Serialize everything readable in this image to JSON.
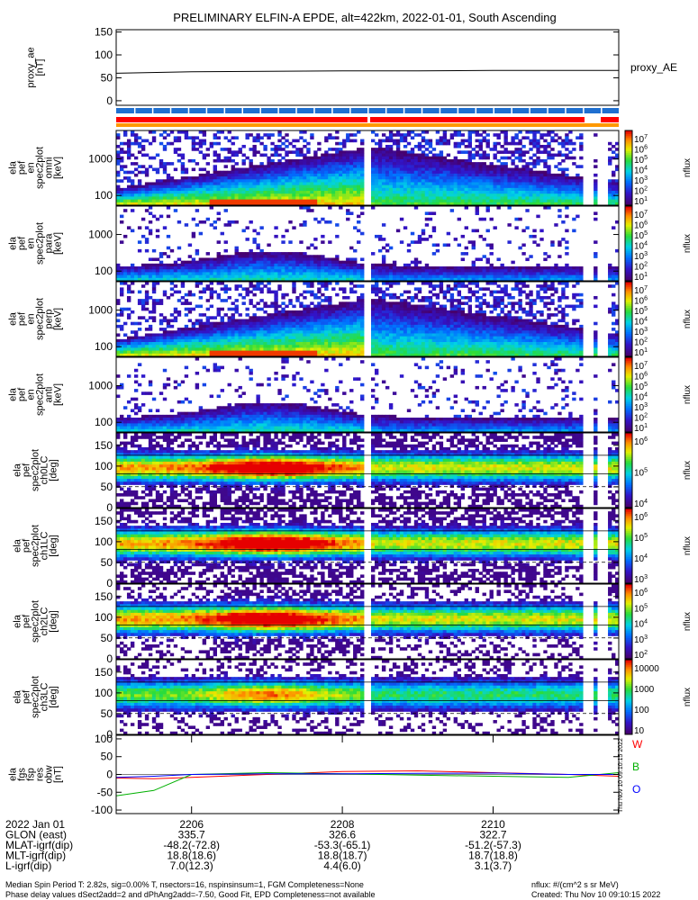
{
  "title": "PRELIMINARY ELFIN-A EPDE, alt=422km, 2022-01-01, South Ascending",
  "chart_data": [
    {
      "type": "line",
      "id": "proxy_ae",
      "ylabel": [
        "proxy_ae",
        "[nT]"
      ],
      "legend": "proxy_AE",
      "ylim": [
        -10,
        155
      ],
      "yticks": [
        "150",
        "100",
        "50",
        "0"
      ],
      "xlim": [
        "22:05:00",
        "22:11:40"
      ],
      "x": [
        "22:05:00",
        "22:06:00",
        "22:07:00",
        "22:08:00",
        "22:09:00",
        "22:10:00",
        "22:11:40"
      ],
      "values": [
        60,
        63,
        64,
        65,
        65,
        66,
        66
      ]
    },
    {
      "type": "heatmap",
      "id": "en-all",
      "ylabel": [
        "ela",
        "pef",
        "en",
        "spec2plot",
        "omni",
        "[keV]"
      ],
      "yticks": [
        "1000",
        "100"
      ],
      "yscale": "log",
      "colorbar": {
        "label": "nflux",
        "ticks": [
          "10^7",
          "10^6",
          "10^5",
          "10^4",
          "10^3",
          "10^2",
          "10^1"
        ]
      }
    },
    {
      "type": "heatmap",
      "id": "en-para",
      "ylabel": [
        "ela",
        "pef",
        "en",
        "spec2plot",
        "para",
        "[keV]"
      ],
      "yticks": [
        "1000",
        "100"
      ],
      "yscale": "log",
      "colorbar": {
        "label": "nflux",
        "ticks": [
          "10^7",
          "10^6",
          "10^5",
          "10^4",
          "10^3",
          "10^2",
          "10^1"
        ]
      }
    },
    {
      "type": "heatmap",
      "id": "en-perp",
      "ylabel": [
        "ela",
        "pef",
        "en",
        "spec2plot",
        "perp",
        "[keV]"
      ],
      "yticks": [
        "1000",
        "100"
      ],
      "yscale": "log",
      "colorbar": {
        "label": "nflux",
        "ticks": [
          "10^7",
          "10^6",
          "10^5",
          "10^4",
          "10^3",
          "10^2",
          "10^1"
        ]
      }
    },
    {
      "type": "heatmap",
      "id": "en-anti",
      "ylabel": [
        "ela",
        "pef",
        "en",
        "spec2plot",
        "anti",
        "[keV]"
      ],
      "yticks": [
        "1000",
        "100"
      ],
      "yscale": "log",
      "colorbar": {
        "label": "nflux",
        "ticks": [
          "10^7",
          "10^6",
          "10^5",
          "10^4",
          "10^3",
          "10^2",
          "10^1"
        ]
      }
    },
    {
      "type": "heatmap",
      "id": "pa-ch0",
      "ylabel": [
        "ela",
        "pef",
        "spec2plot",
        "ch0LC",
        "[deg]"
      ],
      "yticks": [
        "150",
        "100",
        "50",
        "0"
      ],
      "ylim": [
        0,
        180
      ],
      "colorbar": {
        "label": "nflux",
        "ticks": [
          "10^6",
          "10^5",
          "10^4"
        ]
      }
    },
    {
      "type": "heatmap",
      "id": "pa-ch1",
      "ylabel": [
        "ela",
        "pef",
        "spec2plot",
        "ch1LC",
        "[deg]"
      ],
      "yticks": [
        "150",
        "100",
        "50",
        "0"
      ],
      "ylim": [
        0,
        180
      ],
      "colorbar": {
        "label": "nflux",
        "ticks": [
          "10^6",
          "10^5",
          "10^4",
          "10^3"
        ]
      }
    },
    {
      "type": "heatmap",
      "id": "pa-ch2",
      "ylabel": [
        "ela",
        "pef",
        "spec2plot",
        "ch2LC",
        "[deg]"
      ],
      "yticks": [
        "150",
        "100",
        "50",
        "0"
      ],
      "ylim": [
        0,
        180
      ],
      "colorbar": {
        "label": "nflux",
        "ticks": [
          "10^6",
          "10^5",
          "10^4",
          "10^3",
          "10^2"
        ]
      }
    },
    {
      "type": "heatmap",
      "id": "pa-ch3",
      "ylabel": [
        "ela",
        "pef",
        "spec2plot",
        "ch3LC",
        "[deg]"
      ],
      "yticks": [
        "150",
        "100",
        "50",
        "0"
      ],
      "ylim": [
        0,
        180
      ],
      "colorbar": {
        "label": "nflux",
        "ticks": [
          "10000",
          "1000",
          "100",
          "10"
        ]
      }
    },
    {
      "type": "line",
      "id": "fgm",
      "ylabel": [
        "ela",
        "fgs",
        "fsp",
        "res",
        "obw",
        "[nT]"
      ],
      "yticks": [
        "100",
        "50",
        "0",
        "-50",
        "-100"
      ],
      "ylim": [
        -110,
        110
      ],
      "legend": [
        "W",
        "B",
        "O"
      ],
      "series_colors": [
        "#ff0000",
        "#00b000",
        "#0000ff"
      ],
      "x": [
        "22:05:00",
        "22:05:30",
        "22:06:00",
        "22:07:00",
        "22:08:00",
        "22:09:00",
        "22:10:00",
        "22:11:00",
        "22:11:40"
      ],
      "series": [
        {
          "values": [
            -10,
            -12,
            -8,
            0,
            8,
            10,
            5,
            0,
            -5
          ]
        },
        {
          "values": [
            -60,
            -45,
            0,
            5,
            2,
            -2,
            -5,
            -8,
            5
          ]
        },
        {
          "values": [
            -8,
            -5,
            0,
            2,
            2,
            3,
            4,
            0,
            0
          ]
        }
      ]
    }
  ],
  "xaxis": {
    "ticks": [
      "2206",
      "2208",
      "2210"
    ],
    "rows": [
      {
        "label": "2022 Jan 01",
        "values": [
          "2206",
          "2208",
          "2210"
        ]
      },
      {
        "label": "GLON (east)",
        "values": [
          "335.7",
          "326.6",
          "322.7"
        ]
      },
      {
        "label": "MLAT-igrf(dip)",
        "values": [
          "-48.2(-72.8)",
          "-53.3(-65.1)",
          "-51.2(-57.3)"
        ]
      },
      {
        "label": "MLT-igrf(dip)",
        "values": [
          "18.8(18.6)",
          "18.8(18.7)",
          "18.7(18.8)"
        ]
      },
      {
        "label": "L-igrf(dip)",
        "values": [
          "7.0(12.3)",
          "4.4(6.0)",
          "3.1(3.7)"
        ]
      }
    ]
  },
  "footer": {
    "left1": "Median Spin Period T: 2.82s, sig=0.00% T, nsectors=16, nspinsinsum=1, FGM Completeness=None",
    "left2": "Phase delay values dSect2add=2 and dPhAng2add=-7.50, Good Fit, EPD Completeness=not available",
    "right1": "nflux: #/(cm^2 s sr MeV)",
    "right2": "Created: Thu Nov 10 09:10:15 2022",
    "vertical": "Thu Nov 10 09:10:15 2022"
  },
  "colors": {
    "fg": "#000000",
    "bar_blue": "#1f6fd0",
    "bar_red": "#ff0000",
    "bar_orange": "#ff9900"
  }
}
